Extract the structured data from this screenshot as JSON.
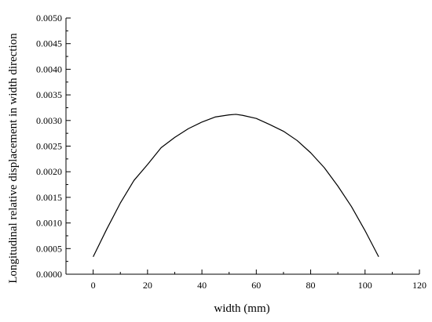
{
  "chart_data": {
    "type": "line",
    "title": "",
    "xlabel": "width  (mm)",
    "ylabel": "Longitudinal relative  displacement in width direction",
    "xlim": [
      -10,
      120
    ],
    "ylim": [
      0,
      0.005
    ],
    "x_ticks": [
      0,
      20,
      40,
      60,
      80,
      100,
      120
    ],
    "x_tick_labels": [
      "0",
      "20",
      "40",
      "60",
      "80",
      "100",
      "120"
    ],
    "y_ticks": [
      0,
      0.0005,
      0.001,
      0.0015,
      0.002,
      0.0025,
      0.003,
      0.0035,
      0.004,
      0.0045,
      0.005
    ],
    "y_tick_labels": [
      "0.0000",
      "0.0005",
      "0.0010",
      "0.0015",
      "0.0020",
      "0.0025",
      "0.0030",
      "0.0035",
      "0.0040",
      "0.0045",
      "0.0050"
    ],
    "grid": false,
    "legend": "none",
    "series": [
      {
        "color": "#000000",
        "x": [
          0,
          5,
          10,
          15,
          20,
          25,
          30,
          35,
          40,
          45,
          50,
          52.5,
          55,
          60,
          65,
          70,
          75,
          80,
          85,
          90,
          95,
          100,
          105
        ],
        "values": [
          0.00034,
          0.00088,
          0.00139,
          0.00183,
          0.00214,
          0.00247,
          0.00267,
          0.00284,
          0.00297,
          0.00307,
          0.00311,
          0.00312,
          0.0031,
          0.00304,
          0.00292,
          0.00279,
          0.00261,
          0.00237,
          0.00208,
          0.00172,
          0.00132,
          0.00085,
          0.00034
        ]
      }
    ]
  }
}
